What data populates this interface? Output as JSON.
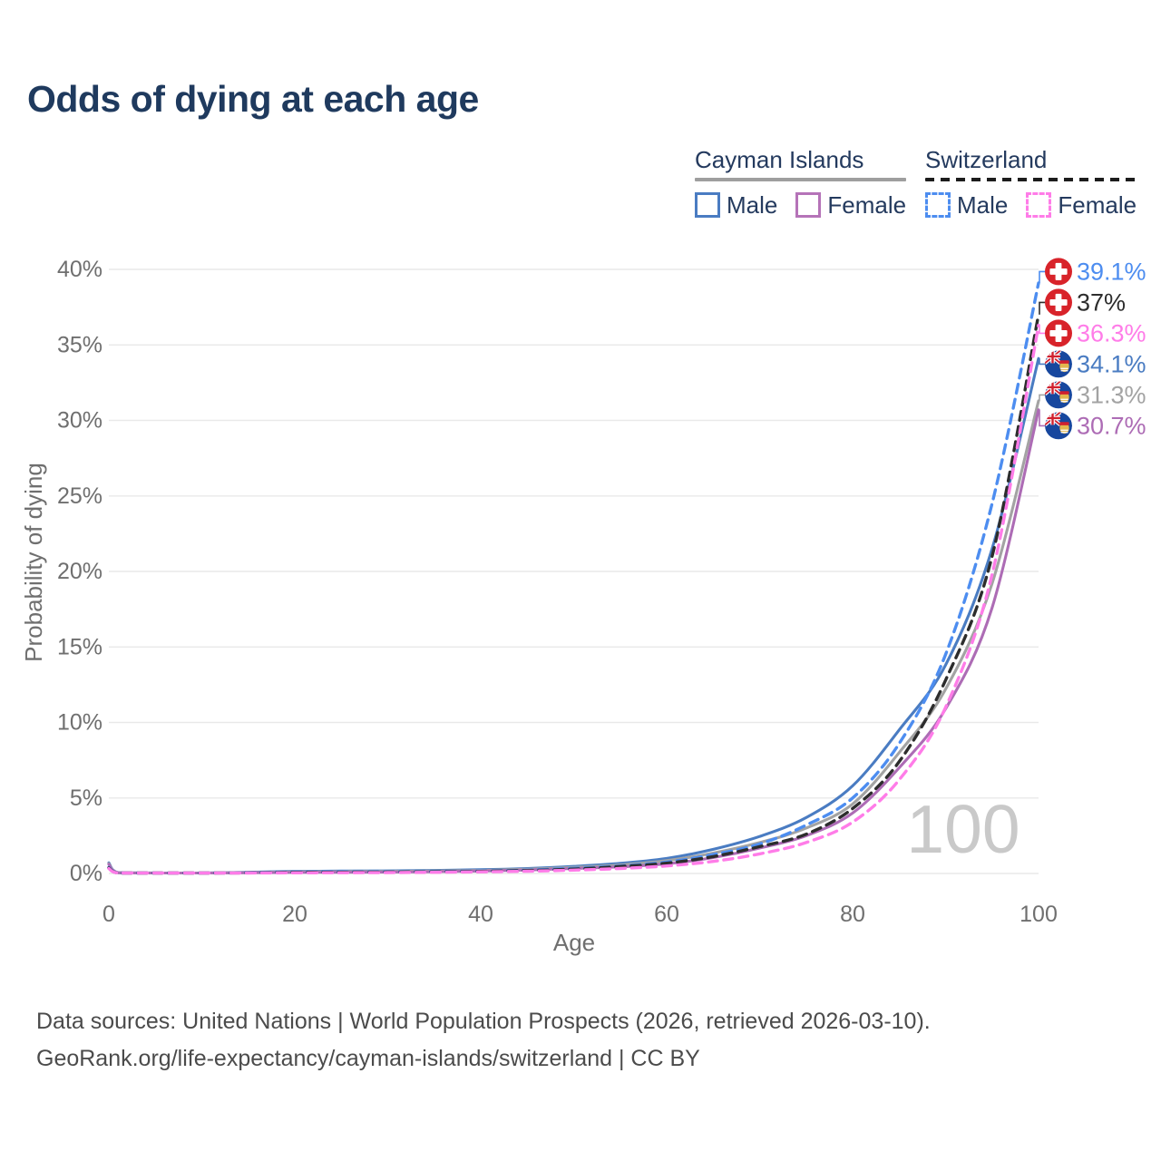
{
  "page": {
    "footer": {
      "line1": "Data sources: United Nations | World Population Prospects (2026, retrieved 2026-03-10).",
      "line2": "GeoRank.org/life-expectancy/cayman-islands/switzerland | CC BY"
    }
  },
  "legend": {
    "groups": [
      {
        "id": "cayman-islands",
        "label": "Cayman Islands",
        "line_style": "solid",
        "line_color": "#9e9e9e",
        "items": [
          {
            "label": "Male",
            "swatch_color": "#4a7cc2",
            "swatch_style": "solid"
          },
          {
            "label": "Female",
            "swatch_color": "#b573b8",
            "swatch_style": "solid"
          }
        ]
      },
      {
        "id": "switzerland",
        "label": "Switzerland",
        "line_style": "dashed",
        "line_color": "#1c1c1c",
        "items": [
          {
            "label": "Male",
            "swatch_color": "#4d8df0",
            "swatch_style": "dashed"
          },
          {
            "label": "Female",
            "swatch_color": "#ff7ce8",
            "swatch_style": "dashed"
          }
        ]
      }
    ]
  },
  "chart_data": {
    "type": "line",
    "title": "Odds of dying at each age",
    "xlabel": "Age",
    "ylabel": "Probability of dying",
    "xlim": [
      0,
      100
    ],
    "ylim": [
      0,
      40
    ],
    "x_ticks": [
      0,
      20,
      40,
      60,
      80,
      100
    ],
    "y_ticks": [
      0,
      5,
      10,
      15,
      20,
      25,
      30,
      35,
      40
    ],
    "y_tick_suffix": "%",
    "grid": "horizontal-only",
    "legend_position": "top-right",
    "watermark": "100",
    "ages": [
      0,
      1,
      5,
      10,
      15,
      20,
      25,
      30,
      35,
      40,
      45,
      50,
      55,
      60,
      65,
      70,
      75,
      80,
      85,
      90,
      95,
      100
    ],
    "series": [
      {
        "name": "Switzerland Male",
        "country": "Switzerland",
        "sex": "Male",
        "style": "dashed",
        "color": "#4d8df0",
        "flag": "switzerland",
        "end_label": "39.1%",
        "end_value": 39.1,
        "values": [
          0.4,
          0.03,
          0.01,
          0.01,
          0.05,
          0.09,
          0.1,
          0.11,
          0.13,
          0.16,
          0.23,
          0.34,
          0.5,
          0.75,
          1.25,
          1.95,
          3.2,
          5.0,
          8.6,
          14.5,
          24.5,
          39.1
        ]
      },
      {
        "name": "Switzerland Both sexes",
        "country": "Switzerland",
        "sex": "Both sexes",
        "style": "dashed",
        "color": "#2d2d2d",
        "flag": "switzerland",
        "end_label": "37%",
        "end_value": 37.0,
        "values": [
          0.37,
          0.03,
          0.01,
          0.01,
          0.04,
          0.07,
          0.08,
          0.09,
          0.11,
          0.14,
          0.2,
          0.29,
          0.46,
          0.68,
          1.12,
          1.78,
          2.6,
          4.3,
          7.4,
          12.8,
          21.0,
          37.0
        ]
      },
      {
        "name": "Switzerland Female",
        "country": "Switzerland",
        "sex": "Female",
        "style": "dashed",
        "color": "#ff7ce8",
        "flag": "switzerland",
        "end_label": "36.3%",
        "end_value": 36.3,
        "values": [
          0.33,
          0.02,
          0.01,
          0.01,
          0.03,
          0.04,
          0.05,
          0.06,
          0.08,
          0.11,
          0.15,
          0.22,
          0.33,
          0.5,
          0.8,
          1.3,
          2.05,
          3.4,
          6.2,
          11.0,
          19.8,
          36.3
        ]
      },
      {
        "name": "Cayman Islands Male",
        "country": "Cayman Islands",
        "sex": "Male",
        "style": "solid",
        "color": "#4a7cc2",
        "flag": "cayman-islands",
        "end_label": "34.1%",
        "end_value": 34.1,
        "values": [
          0.7,
          0.06,
          0.03,
          0.03,
          0.08,
          0.14,
          0.16,
          0.17,
          0.2,
          0.25,
          0.33,
          0.47,
          0.67,
          1.0,
          1.6,
          2.45,
          3.7,
          5.8,
          9.5,
          13.8,
          21.5,
          34.1
        ]
      },
      {
        "name": "Cayman Islands Both sexes",
        "country": "Cayman Islands",
        "sex": "Both sexes",
        "style": "solid",
        "color": "#a3a3a3",
        "flag": "cayman-islands",
        "end_label": "31.3%",
        "end_value": 31.3,
        "values": [
          0.65,
          0.05,
          0.02,
          0.02,
          0.06,
          0.1,
          0.12,
          0.13,
          0.16,
          0.2,
          0.28,
          0.4,
          0.57,
          0.85,
          1.35,
          2.05,
          3.0,
          4.6,
          8.0,
          12.2,
          19.2,
          31.3
        ]
      },
      {
        "name": "Cayman Islands Female",
        "country": "Cayman Islands",
        "sex": "Female",
        "style": "solid",
        "color": "#ad6cb5",
        "flag": "cayman-islands",
        "end_label": "30.7%",
        "end_value": 30.7,
        "values": [
          0.6,
          0.05,
          0.02,
          0.02,
          0.05,
          0.07,
          0.08,
          0.09,
          0.12,
          0.16,
          0.23,
          0.33,
          0.44,
          0.64,
          1.05,
          1.68,
          2.5,
          4.0,
          7.0,
          10.9,
          17.6,
          30.7
        ]
      }
    ]
  }
}
